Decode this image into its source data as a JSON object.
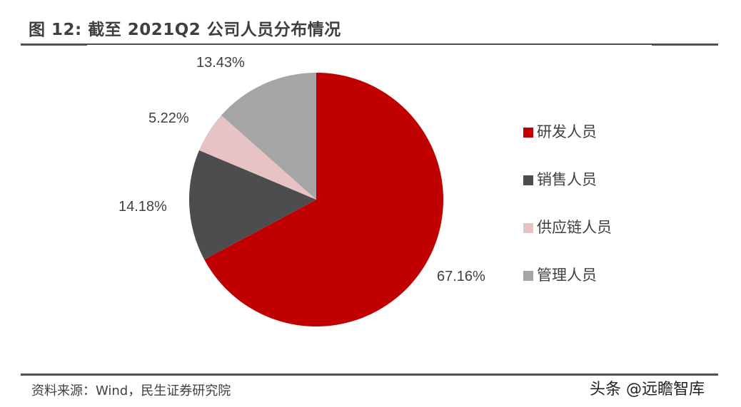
{
  "header": {
    "title": "图 12: 截至 2021Q2 公司人员分布情况"
  },
  "footer": {
    "source": "资料来源：Wind，民生证券研究院",
    "watermark": "头条 @远瞻智库"
  },
  "chart_data": {
    "type": "pie",
    "title": "图 12: 截至 2021Q2 公司人员分布情况",
    "start_angle": "12 o'clock, clockwise",
    "categories": [
      "研发人员",
      "销售人员",
      "供应链人员",
      "管理人员"
    ],
    "values": [
      67.16,
      14.18,
      5.22,
      13.43
    ],
    "labels": [
      "67.16%",
      "14.18%",
      "5.22%",
      "13.43%"
    ],
    "colors": [
      "#C00000",
      "#4D4D4F",
      "#E8C3C3",
      "#A5A5A5"
    ],
    "legend_position": "right",
    "unit": "%"
  },
  "legend": {
    "items": [
      {
        "label": "研发人员",
        "color": "#C00000"
      },
      {
        "label": "销售人员",
        "color": "#4D4D4F"
      },
      {
        "label": "供应链人员",
        "color": "#E8C3C3"
      },
      {
        "label": "管理人员",
        "color": "#A5A5A5"
      }
    ]
  }
}
